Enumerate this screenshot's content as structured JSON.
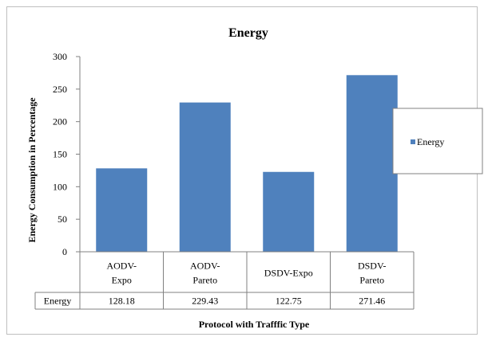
{
  "chart_data": {
    "type": "bar",
    "title": "Energy",
    "xlabel": "Protocol with Trafffic Type",
    "ylabel": "Energy Consumption in Percentage",
    "categories": [
      [
        "AODV-",
        "Expo"
      ],
      [
        "AODV-",
        "Pareto"
      ],
      [
        "DSDV-Expo"
      ],
      [
        "DSDV-",
        "Pareto"
      ]
    ],
    "series": [
      {
        "name": "Energy",
        "values": [
          128.18,
          229.43,
          122.75,
          271.46
        ],
        "color": "#4f81bd"
      }
    ],
    "value_labels": [
      "128.18",
      "229.43",
      "122.75",
      "271.46"
    ],
    "ylim": [
      0,
      300
    ],
    "yticks": [
      0,
      50,
      100,
      150,
      200,
      250,
      300
    ],
    "grid": false,
    "legend_position": "right",
    "data_table": true
  }
}
